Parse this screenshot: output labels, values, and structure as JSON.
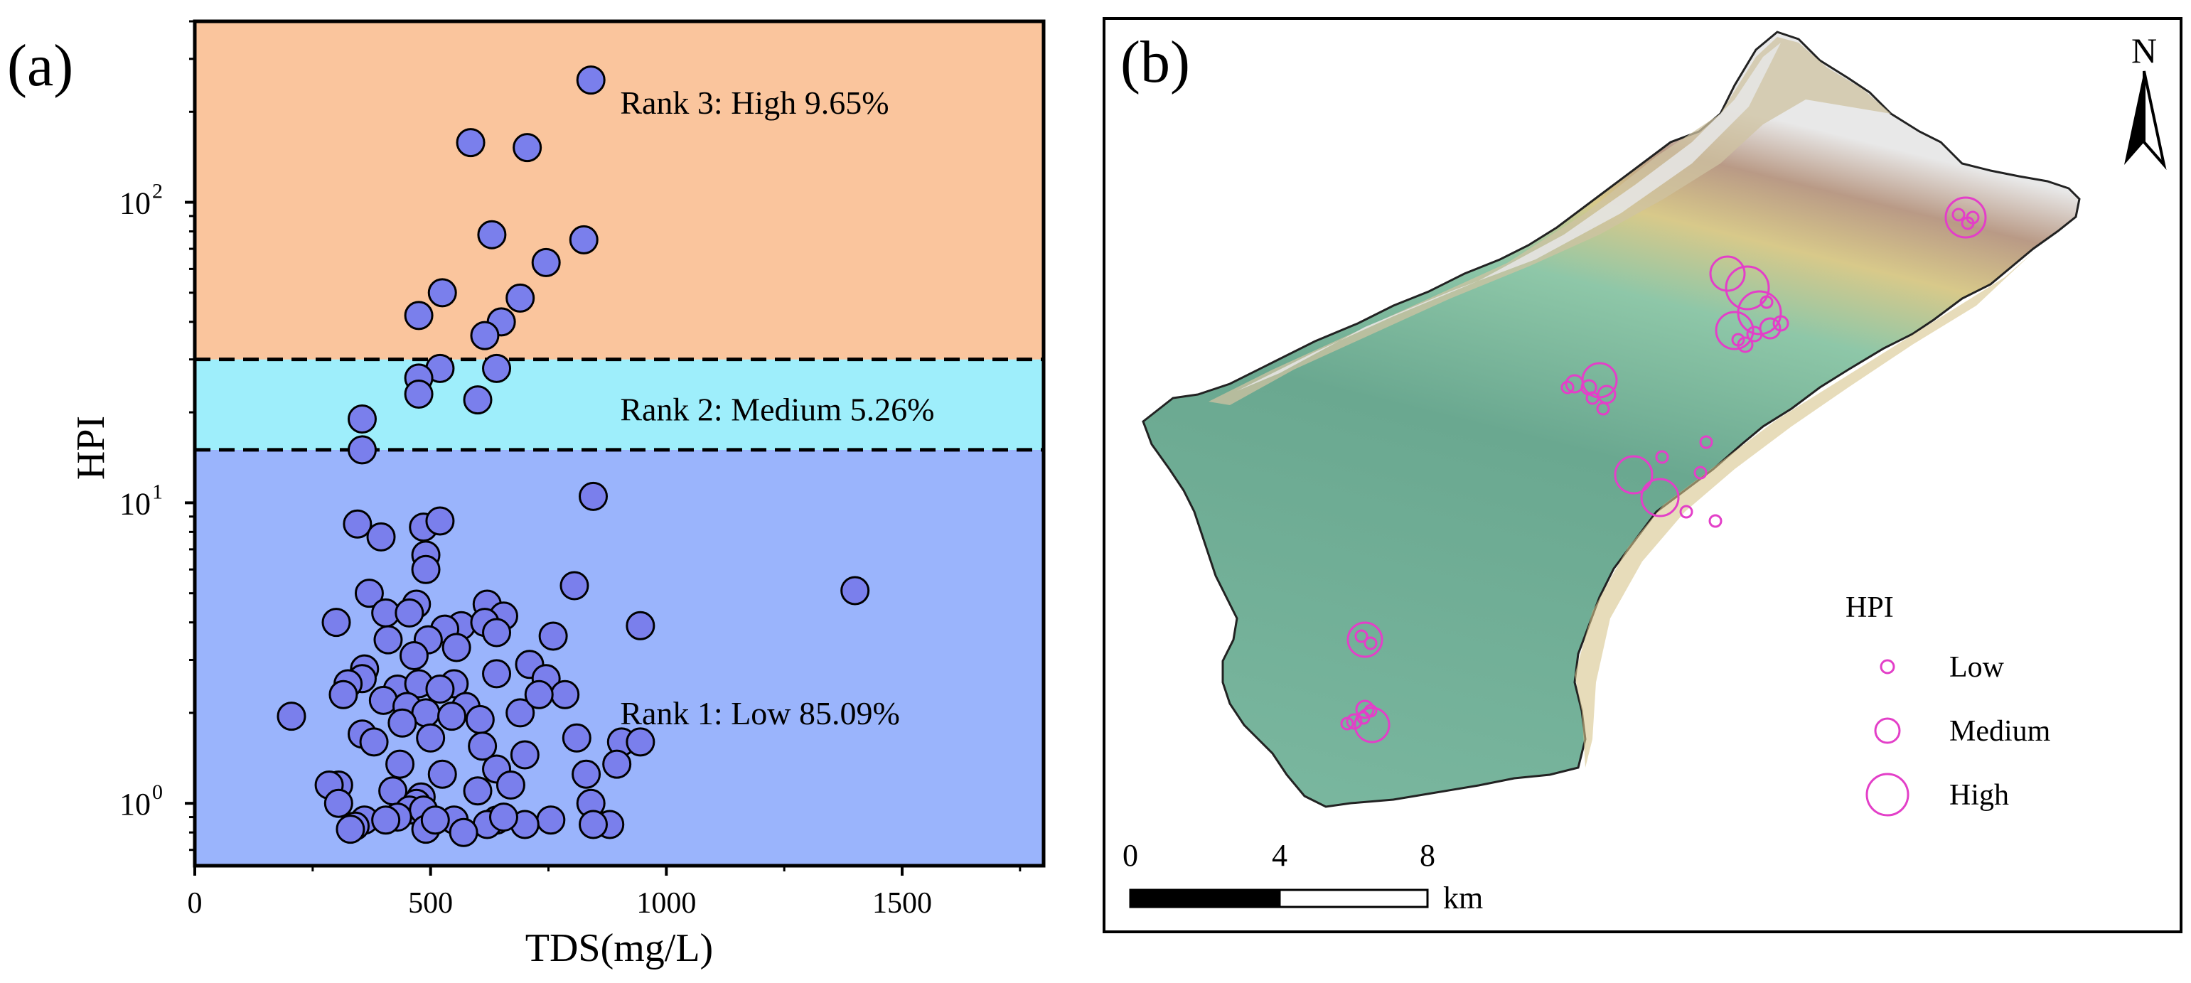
{
  "panel_a_label": "(a)",
  "panel_b_label": "(b)",
  "chart_data": {
    "type": "scatter",
    "xlabel": "TDS(mg/L)",
    "ylabel": "HPI",
    "xlim": [
      0,
      1800
    ],
    "ylim_log": [
      0.62,
      400
    ],
    "x_ticks": [
      0,
      500,
      1000,
      1500
    ],
    "y_ticks": [
      {
        "value": 1,
        "base": "10",
        "exp": "0"
      },
      {
        "value": 10,
        "base": "10",
        "exp": "1"
      },
      {
        "value": 100,
        "base": "10",
        "exp": "2"
      }
    ],
    "thresholds": [
      15,
      30
    ],
    "bands": [
      {
        "name": "rank1",
        "from": 0.62,
        "to": 15,
        "color": "#9ab4fc",
        "label": "Rank 1: Low 85.09%",
        "label_value_x": 1000,
        "label_value_y": 2.0
      },
      {
        "name": "rank2",
        "from": 15,
        "to": 30,
        "color": "#9eeefb",
        "label": "Rank 2: Medium 5.26%",
        "label_value_x": 1000,
        "label_value_y": 20.5
      },
      {
        "name": "rank3",
        "from": 30,
        "to": 400,
        "color": "#fac59d",
        "label": "Rank 3: High 9.65%",
        "label_value_x": 1000,
        "label_value_y": 215
      }
    ],
    "marker_color": "#7a7fec",
    "points": [
      [
        840,
        255
      ],
      [
        585,
        158
      ],
      [
        705,
        152
      ],
      [
        630,
        78
      ],
      [
        825,
        75
      ],
      [
        745,
        63
      ],
      [
        525,
        50
      ],
      [
        690,
        48
      ],
      [
        475,
        42
      ],
      [
        650,
        40
      ],
      [
        615,
        36
      ],
      [
        520,
        28
      ],
      [
        640,
        28
      ],
      [
        475,
        26
      ],
      [
        475,
        23
      ],
      [
        600,
        22
      ],
      [
        355,
        19
      ],
      [
        355,
        15
      ],
      [
        845,
        10.5
      ],
      [
        345,
        8.5
      ],
      [
        485,
        8.3
      ],
      [
        520,
        8.7
      ],
      [
        395,
        7.7
      ],
      [
        490,
        6.7
      ],
      [
        490,
        6.0
      ],
      [
        1400,
        5.1
      ],
      [
        805,
        5.3
      ],
      [
        370,
        5.0
      ],
      [
        620,
        4.6
      ],
      [
        470,
        4.6
      ],
      [
        405,
        4.3
      ],
      [
        455,
        4.3
      ],
      [
        655,
        4.2
      ],
      [
        300,
        4.0
      ],
      [
        565,
        3.9
      ],
      [
        615,
        4.0
      ],
      [
        945,
        3.9
      ],
      [
        530,
        3.8
      ],
      [
        640,
        3.7
      ],
      [
        410,
        3.5
      ],
      [
        760,
        3.6
      ],
      [
        495,
        3.5
      ],
      [
        555,
        3.3
      ],
      [
        465,
        3.1
      ],
      [
        360,
        2.8
      ],
      [
        640,
        2.7
      ],
      [
        355,
        2.6
      ],
      [
        710,
        2.9
      ],
      [
        325,
        2.5
      ],
      [
        550,
        2.5
      ],
      [
        745,
        2.6
      ],
      [
        430,
        2.4
      ],
      [
        475,
        2.5
      ],
      [
        520,
        2.4
      ],
      [
        315,
        2.3
      ],
      [
        400,
        2.2
      ],
      [
        450,
        2.1
      ],
      [
        575,
        2.1
      ],
      [
        690,
        2.0
      ],
      [
        785,
        2.3
      ],
      [
        730,
        2.3
      ],
      [
        205,
        1.95
      ],
      [
        490,
        2.0
      ],
      [
        545,
        1.95
      ],
      [
        605,
        1.9
      ],
      [
        440,
        1.85
      ],
      [
        355,
        1.7
      ],
      [
        500,
        1.65
      ],
      [
        810,
        1.65
      ],
      [
        610,
        1.55
      ],
      [
        380,
        1.6
      ],
      [
        700,
        1.45
      ],
      [
        905,
        1.6
      ],
      [
        945,
        1.6
      ],
      [
        435,
        1.35
      ],
      [
        525,
        1.25
      ],
      [
        640,
        1.3
      ],
      [
        895,
        1.35
      ],
      [
        830,
        1.25
      ],
      [
        305,
        1.15
      ],
      [
        420,
        1.1
      ],
      [
        600,
        1.1
      ],
      [
        670,
        1.15
      ],
      [
        285,
        1.15
      ],
      [
        480,
        1.05
      ],
      [
        305,
        1.0
      ],
      [
        470,
        1.0
      ],
      [
        840,
        1.0
      ],
      [
        455,
        0.95
      ],
      [
        485,
        0.95
      ],
      [
        430,
        0.9
      ],
      [
        360,
        0.88
      ],
      [
        405,
        0.88
      ],
      [
        550,
        0.88
      ],
      [
        640,
        0.88
      ],
      [
        755,
        0.88
      ],
      [
        620,
        0.85
      ],
      [
        700,
        0.85
      ],
      [
        880,
        0.85
      ],
      [
        340,
        0.84
      ],
      [
        845,
        0.85
      ],
      [
        330,
        0.82
      ],
      [
        490,
        0.82
      ],
      [
        570,
        0.8
      ],
      [
        510,
        0.88
      ],
      [
        655,
        0.9
      ]
    ]
  },
  "map": {
    "north_label": "N",
    "legend_title": "HPI",
    "legend_items": [
      "Low",
      "Medium",
      "High"
    ],
    "scale_ticks": [
      "0",
      "4",
      "8"
    ],
    "scale_unit": "km",
    "marker_color": "#e33fc8"
  }
}
